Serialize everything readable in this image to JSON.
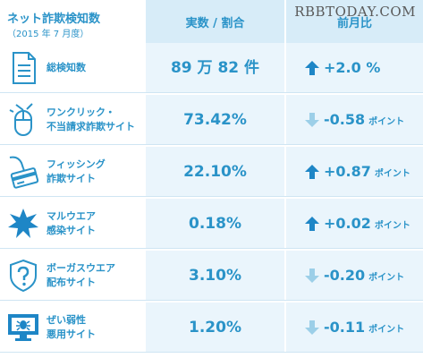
{
  "watermark": "RBBTODAY.COM",
  "header": {
    "title": "ネット詐欺検知数",
    "subtitle": "（2015 年 7 月度）",
    "col_ratio": "実数 / 割合",
    "col_change": "前月比"
  },
  "colors": {
    "accent": "#2a93c8",
    "up_arrow": "#1e86c6",
    "down_arrow": "#9ccfe8",
    "cell_bg": "#eaf5fc",
    "header_bg": "#d7ecf8"
  },
  "rows": [
    {
      "icon": "document-icon",
      "label1": "総検知数",
      "label2": "",
      "ratio": "89 万 82 件",
      "direction": "up",
      "change": "+2.0 %",
      "unit": ""
    },
    {
      "icon": "mouse-click-icon",
      "label1": "ワンクリック・",
      "label2": "不当請求詐欺サイト",
      "ratio": "73.42%",
      "direction": "down",
      "change": "-0.58",
      "unit": "ポイント"
    },
    {
      "icon": "fishing-card-icon",
      "label1": "フィッシング",
      "label2": "詐欺サイト",
      "ratio": "22.10%",
      "direction": "up",
      "change": "+0.87",
      "unit": "ポイント"
    },
    {
      "icon": "malware-burst-icon",
      "label1": "マルウエア",
      "label2": "感染サイト",
      "ratio": "0.18%",
      "direction": "up",
      "change": "+0.02",
      "unit": "ポイント"
    },
    {
      "icon": "question-shield-icon",
      "label1": "ボーガスウエア",
      "label2": "配布サイト",
      "ratio": "3.10%",
      "direction": "down",
      "change": "-0.20",
      "unit": "ポイント"
    },
    {
      "icon": "monitor-bug-icon",
      "label1": "ぜい弱性",
      "label2": "悪用サイト",
      "ratio": "1.20%",
      "direction": "down",
      "change": "-0.11",
      "unit": "ポイント"
    }
  ]
}
